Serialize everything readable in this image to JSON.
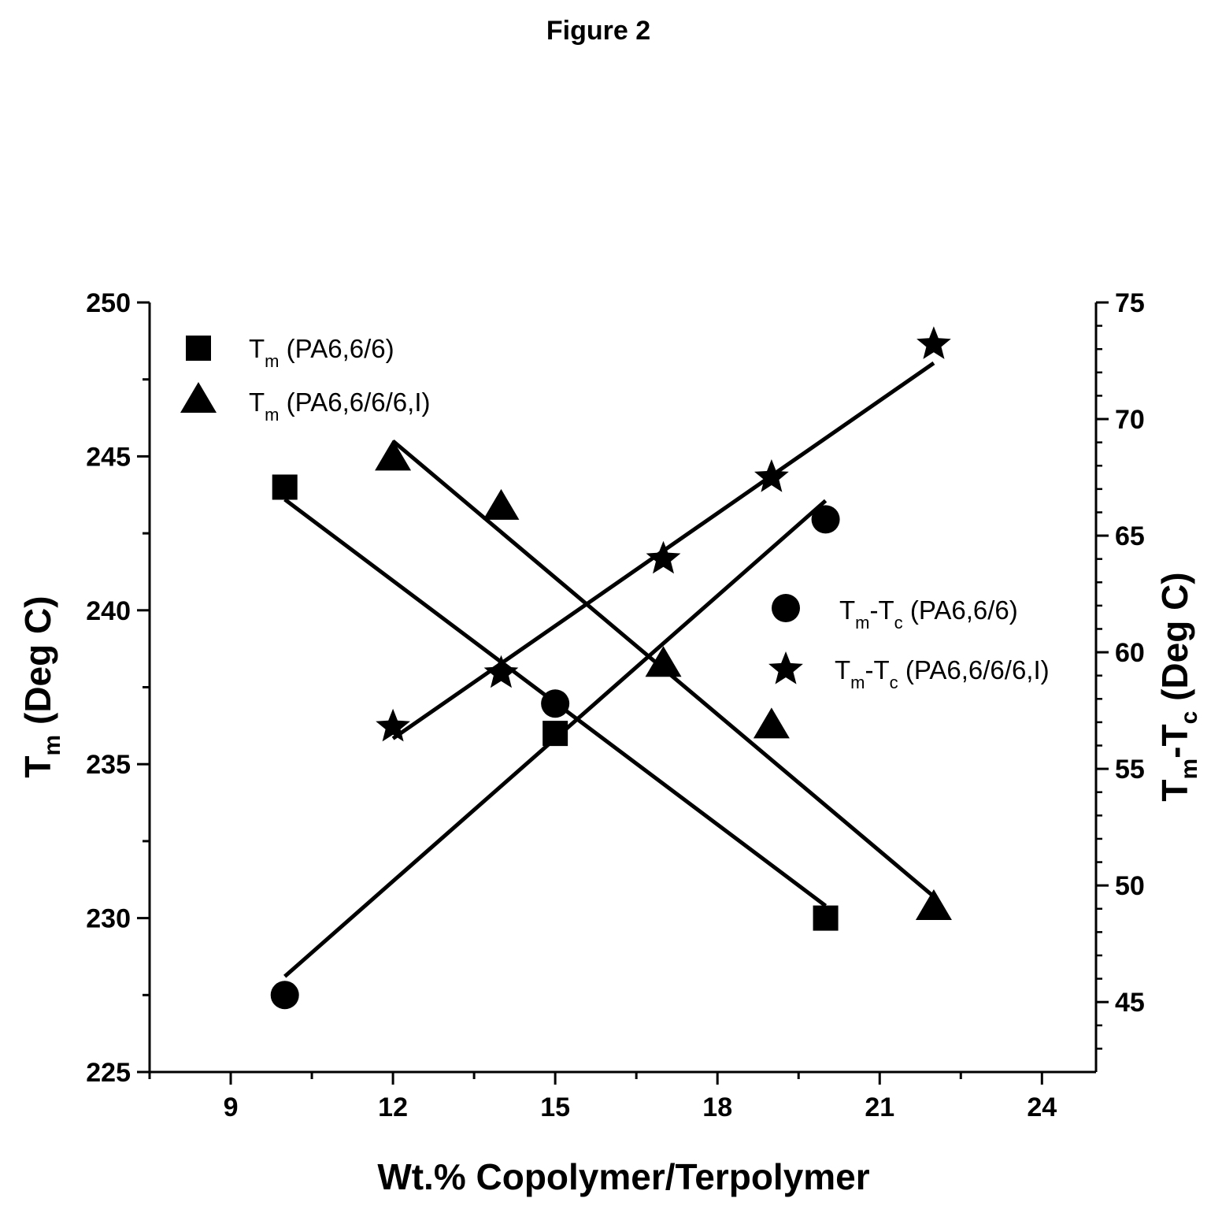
{
  "figure_title": "Figure 2",
  "chart_data": {
    "type": "scatter",
    "title": "",
    "xlabel": "Wt.% Copolymer/Terpolymer",
    "ylabel": {
      "main": "T",
      "sub": "m",
      "rest": " (Deg C)"
    },
    "y2label": {
      "a": "T",
      "a_sub": "m",
      "b": "-T",
      "b_sub": "c",
      "rest": " (Deg C)"
    },
    "xlim": [
      7.5,
      25
    ],
    "ylim": [
      225,
      250
    ],
    "y2lim": [
      42,
      75
    ],
    "xticks": [
      9,
      12,
      15,
      18,
      21,
      24
    ],
    "yticks": [
      225,
      230,
      235,
      240,
      245,
      250
    ],
    "y2ticks": [
      45,
      50,
      55,
      60,
      65,
      70,
      75
    ],
    "grid": false,
    "series": [
      {
        "name": "T_m (PA6,6/6)",
        "label": {
          "main": "T",
          "sub": "m",
          "rest": " (PA6,6/6)"
        },
        "marker": "square",
        "axis": "left",
        "x": [
          10,
          15,
          20
        ],
        "y": [
          244,
          236,
          230
        ],
        "fit": [
          [
            10,
            243.6
          ],
          [
            20,
            230.4
          ]
        ]
      },
      {
        "name": "T_m (PA6,6/6/6,I)",
        "label": {
          "main": "T",
          "sub": "m",
          "rest": " (PA6,6/6/6,I)"
        },
        "marker": "triangle",
        "axis": "left",
        "x": [
          12,
          14,
          17,
          19,
          22
        ],
        "y": [
          245,
          243.4,
          238.3,
          236.3,
          230.4
        ],
        "fit": [
          [
            12,
            245.5
          ],
          [
            22,
            230.7
          ]
        ]
      },
      {
        "name": "T_m-T_c (PA6,6/6)",
        "label": {
          "a": "T",
          "a_sub": "m",
          "b": "-T",
          "b_sub": "c",
          "rest": " (PA6,6/6)"
        },
        "marker": "circle",
        "axis": "right",
        "x": [
          10,
          15,
          20
        ],
        "y": [
          45.3,
          57.8,
          65.7
        ],
        "fit": [
          [
            10,
            46.1
          ],
          [
            20,
            66.5
          ]
        ]
      },
      {
        "name": "T_m-T_c (PA6,6/6/6,I)",
        "label": {
          "a": "T",
          "a_sub": "m",
          "b": "-T",
          "b_sub": "c",
          "rest": " (PA6,6/6/6,I)"
        },
        "marker": "star",
        "axis": "right",
        "x": [
          12,
          14,
          17,
          19,
          22
        ],
        "y": [
          56.8,
          59.1,
          64.0,
          67.5,
          73.2
        ],
        "fit": [
          [
            12,
            56.3
          ],
          [
            22,
            72.4
          ]
        ]
      }
    ],
    "legends": [
      "top-left",
      "center-right"
    ]
  }
}
